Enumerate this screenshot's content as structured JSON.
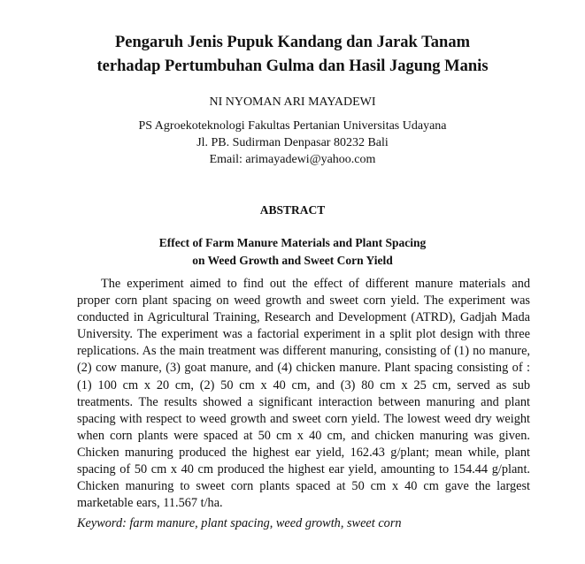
{
  "title": [
    "Pengaruh Jenis Pupuk Kandang dan Jarak Tanam",
    "terhadap Pertumbuhan Gulma dan Hasil Jagung Manis"
  ],
  "author": "NI NYOMAN ARI MAYADEWI",
  "affiliation": [
    "PS Agroekoteknologi Fakultas Pertanian Universitas Udayana",
    "Jl. PB. Sudirman Denpasar 80232 Bali",
    "Email: arimayadewi@yahoo.com"
  ],
  "abstract_heading": "ABSTRACT",
  "english_title": [
    "Effect of Farm Manure Materials and Plant Spacing",
    "on Weed Growth and Sweet Corn Yield"
  ],
  "abstract_lines": [
    "The experiment aimed to find out the effect of different manure materials and",
    "proper corn plant spacing on weed growth and sweet corn yield. The experiment was",
    "conducted in Agricultural Training, Research and Development (ATRD), Gadjah Mada",
    "University. The experiment was a factorial experiment in a split plot design with three",
    "replications. As the main treatment was different manuring, consisting of (1) no manure,",
    "(2) cow manure, (3) goat manure, and (4) chicken manure. Plant spacing consisting of :",
    "(1) 100 cm x 20 cm, (2) 50 cm x 40 cm, and (3) 80 cm x 25 cm, served as sub",
    "treatments. The results showed a significant interaction between manuring and plant",
    "spacing with respect to weed growth and sweet corn yield. The lowest weed dry weight",
    "when corn plants were spaced at 50 cm x 40 cm, and chicken manuring was given.",
    "Chicken manuring produced the highest ear yield, 162.43 g/plant; mean while, plant",
    "spacing of 50 cm x 40 cm produced the highest ear yield, amounting to 154.44 g/plant.",
    "Chicken manuring to sweet corn plants spaced at 50 cm x 40 cm gave the largest",
    "marketable ears, 11.567 t/ha."
  ],
  "keywords": "Keyword:  farm manure, plant spacing, weed growth, sweet corn"
}
